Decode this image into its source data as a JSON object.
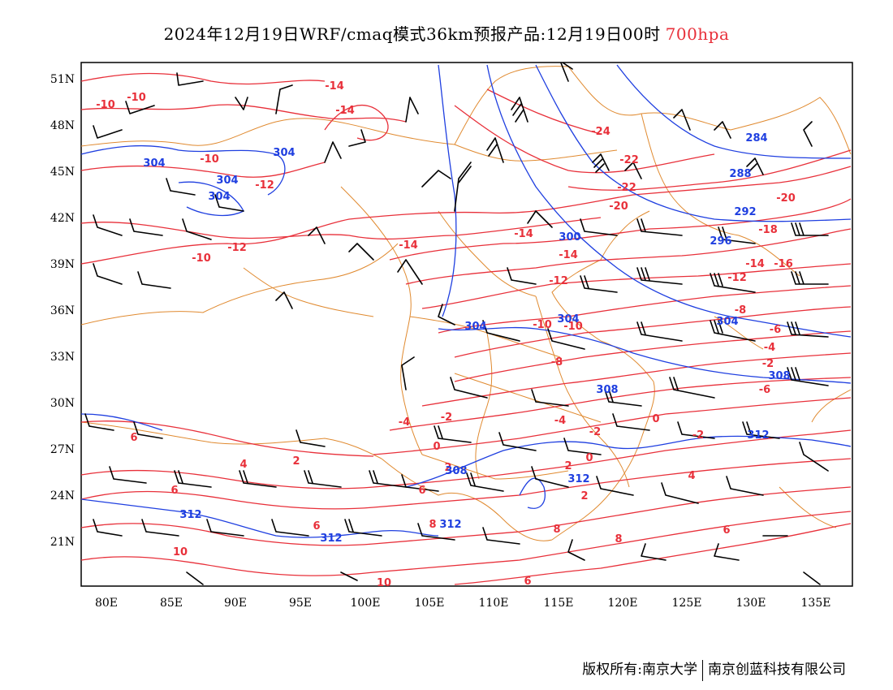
{
  "title": {
    "main": "2024年12月19日WRF/cmaq模式36km预报产品:12月19日00时",
    "level": "700hpa"
  },
  "axes": {
    "lat_labels": [
      "51N",
      "48N",
      "45N",
      "42N",
      "39N",
      "36N",
      "33N",
      "30N",
      "27N",
      "24N",
      "21N"
    ],
    "lon_labels": [
      "80E",
      "85E",
      "90E",
      "95E",
      "100E",
      "105E",
      "110E",
      "115E",
      "120E",
      "125E",
      "130E",
      "135E"
    ]
  },
  "temperature_labels": [
    "-10",
    "-10",
    "-14",
    "-14",
    "-10",
    "-12",
    "-12",
    "-10",
    "-14",
    "-14",
    "-24",
    "-22",
    "-22",
    "-20",
    "-20",
    "-18",
    "-16",
    "-14",
    "-14",
    "-12",
    "-12",
    "-10",
    "-10",
    "-8",
    "-8",
    "-6",
    "-4",
    "-2",
    "-6",
    "-4",
    "-2",
    "0",
    "-2",
    "-4",
    "-2",
    "0",
    "2",
    "6",
    "4",
    "2",
    "6",
    "6",
    "10",
    "8",
    "2",
    "4",
    "6",
    "8",
    "8",
    "6",
    "2",
    "6",
    "10",
    "0"
  ],
  "height_labels": [
    "304",
    "304",
    "304",
    "304",
    "304",
    "284",
    "288",
    "292",
    "296",
    "300",
    "304",
    "304",
    "308",
    "308",
    "308",
    "312",
    "312",
    "312",
    "312",
    "312"
  ],
  "colors": {
    "temperature": "#e8303a",
    "height": "#1f3fe0",
    "border": "#e08a30",
    "wind": "#000000"
  },
  "credit": {
    "left": "版权所有:南京大学",
    "right": "南京创蓝科技有限公司"
  }
}
